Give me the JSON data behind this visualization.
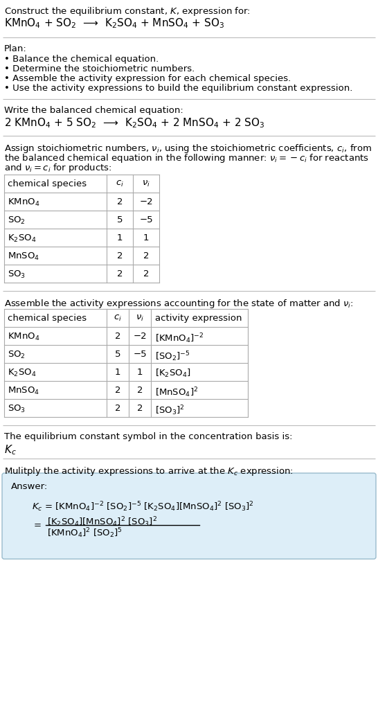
{
  "bg_color": "#ffffff",
  "title_line1": "Construct the equilibrium constant, $K$, expression for:",
  "title_line2": "KMnO$_4$ + SO$_2$  ⟶  K$_2$SO$_4$ + MnSO$_4$ + SO$_3$",
  "plan_header": "Plan:",
  "plan_items": [
    "• Balance the chemical equation.",
    "• Determine the stoichiometric numbers.",
    "• Assemble the activity expression for each chemical species.",
    "• Use the activity expressions to build the equilibrium constant expression."
  ],
  "balanced_header": "Write the balanced chemical equation:",
  "balanced_eq": "2 KMnO$_4$ + 5 SO$_2$  ⟶  K$_2$SO$_4$ + 2 MnSO$_4$ + 2 SO$_3$",
  "stoich_lines": [
    "Assign stoichiometric numbers, $\\nu_i$, using the stoichiometric coefficients, $c_i$, from",
    "the balanced chemical equation in the following manner: $\\nu_i = -c_i$ for reactants",
    "and $\\nu_i = c_i$ for products:"
  ],
  "table1_headers": [
    "chemical species",
    "$c_i$",
    "$\\nu_i$"
  ],
  "table1_rows": [
    [
      "KMnO$_4$",
      "2",
      "−2"
    ],
    [
      "SO$_2$",
      "5",
      "−5"
    ],
    [
      "K$_2$SO$_4$",
      "1",
      "1"
    ],
    [
      "MnSO$_4$",
      "2",
      "2"
    ],
    [
      "SO$_3$",
      "2",
      "2"
    ]
  ],
  "assemble_header": "Assemble the activity expressions accounting for the state of matter and $\\nu_i$:",
  "table2_headers": [
    "chemical species",
    "$c_i$",
    "$\\nu_i$",
    "activity expression"
  ],
  "table2_rows": [
    [
      "KMnO$_4$",
      "2",
      "−2",
      "[KMnO$_4$]$^{-2}$"
    ],
    [
      "SO$_2$",
      "5",
      "−5",
      "[SO$_2$]$^{-5}$"
    ],
    [
      "K$_2$SO$_4$",
      "1",
      "1",
      "[K$_2$SO$_4$]"
    ],
    [
      "MnSO$_4$",
      "2",
      "2",
      "[MnSO$_4$]$^2$"
    ],
    [
      "SO$_3$",
      "2",
      "2",
      "[SO$_3$]$^2$"
    ]
  ],
  "kc_header": "The equilibrium constant symbol in the concentration basis is:",
  "kc_symbol": "$K_c$",
  "multiply_header": "Mulitply the activity expressions to arrive at the $K_c$ expression:",
  "answer_label": "Answer:",
  "ans_kc_line": "$K_c$ = [KMnO$_4$]$^{-2}$ [SO$_2$]$^{-5}$ [K$_2$SO$_4$][MnSO$_4$]$^2$ [SO$_3$]$^2$",
  "ans_numer": "[K$_2$SO$_4$][MnSO$_4$]$^2$ [SO$_3$]$^2$",
  "ans_denom": "[KMnO$_4$]$^2$ [SO$_2$]$^5$",
  "line_color": "#bbbbbb",
  "table_line_color": "#aaaaaa",
  "ans_box_color": "#ddeef8",
  "ans_border_color": "#99bbcc"
}
